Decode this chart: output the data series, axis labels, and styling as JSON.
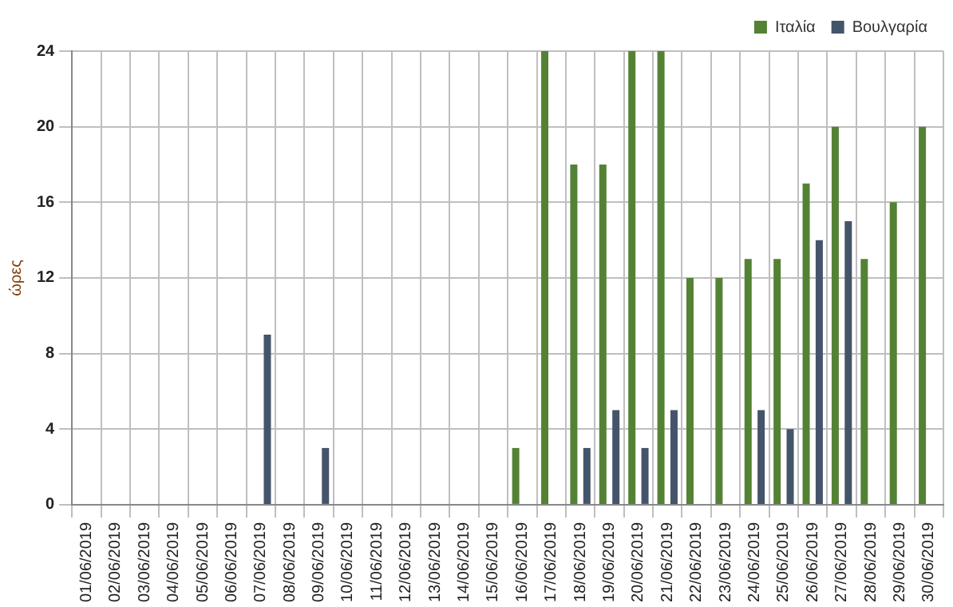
{
  "chart_data": {
    "type": "bar",
    "ylabel": "ώρες",
    "categories": [
      "01/06/2019",
      "02/06/2019",
      "03/06/2019",
      "04/06/2019",
      "05/06/2019",
      "06/06/2019",
      "07/06/2019",
      "08/06/2019",
      "09/06/2019",
      "10/06/2019",
      "11/06/2019",
      "12/06/2019",
      "13/06/2019",
      "14/06/2019",
      "15/06/2019",
      "16/06/2019",
      "17/06/2019",
      "18/06/2019",
      "19/06/2019",
      "20/06/2019",
      "21/06/2019",
      "22/06/2019",
      "23/06/2019",
      "24/06/2019",
      "25/06/2019",
      "26/06/2019",
      "27/06/2019",
      "28/06/2019",
      "29/06/2019",
      "30/06/2019"
    ],
    "series": [
      {
        "name": "Ιταλία",
        "color": "#548235",
        "values": [
          null,
          null,
          null,
          null,
          null,
          null,
          null,
          null,
          null,
          null,
          null,
          null,
          null,
          null,
          null,
          3,
          24,
          18,
          18,
          24,
          24,
          12,
          12,
          13,
          13,
          17,
          20,
          13,
          16,
          20
        ]
      },
      {
        "name": "Βουλγαρία",
        "color": "#44546a",
        "values": [
          null,
          null,
          null,
          null,
          null,
          null,
          9,
          null,
          3,
          null,
          null,
          null,
          null,
          null,
          null,
          null,
          null,
          3,
          5,
          3,
          5,
          null,
          null,
          5,
          4,
          14,
          15,
          null,
          null,
          null
        ]
      }
    ],
    "ylim": [
      0,
      24
    ],
    "yticks": [
      0,
      4,
      8,
      12,
      16,
      20,
      24
    ],
    "grid": true,
    "legend": "top right"
  }
}
